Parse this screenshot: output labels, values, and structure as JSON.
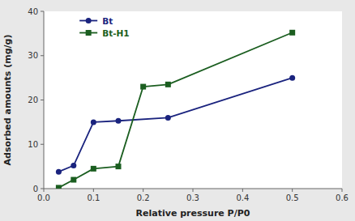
{
  "chart_data": {
    "type": "line",
    "xlabel": "Relative pressure P/P0",
    "ylabel": "Adsorbed amounts (mg/g)",
    "series": [
      {
        "name": "Bt",
        "color": "#1a237e",
        "marker": "circle",
        "x": [
          0.03,
          0.06,
          0.1,
          0.15,
          0.25,
          0.5
        ],
        "values": [
          3.8,
          5.2,
          15.0,
          15.3,
          16.0,
          25.0
        ]
      },
      {
        "name": "Bt-H1",
        "color": "#1b5e20",
        "marker": "square",
        "x": [
          0.03,
          0.06,
          0.1,
          0.15,
          0.2,
          0.25,
          0.5
        ],
        "values": [
          0.2,
          2.0,
          4.5,
          5.0,
          23.0,
          23.5,
          35.2
        ]
      }
    ],
    "xlim": [
      0.0,
      0.6
    ],
    "ylim": [
      0,
      40
    ],
    "xticks": [
      {
        "value": 0.0,
        "label": "0.0"
      },
      0.1,
      0.2,
      0.3,
      0.4,
      0.5,
      0.6
    ],
    "yticks": [
      0,
      10,
      20,
      30,
      40
    ],
    "grid": false,
    "legend": "upper left"
  }
}
